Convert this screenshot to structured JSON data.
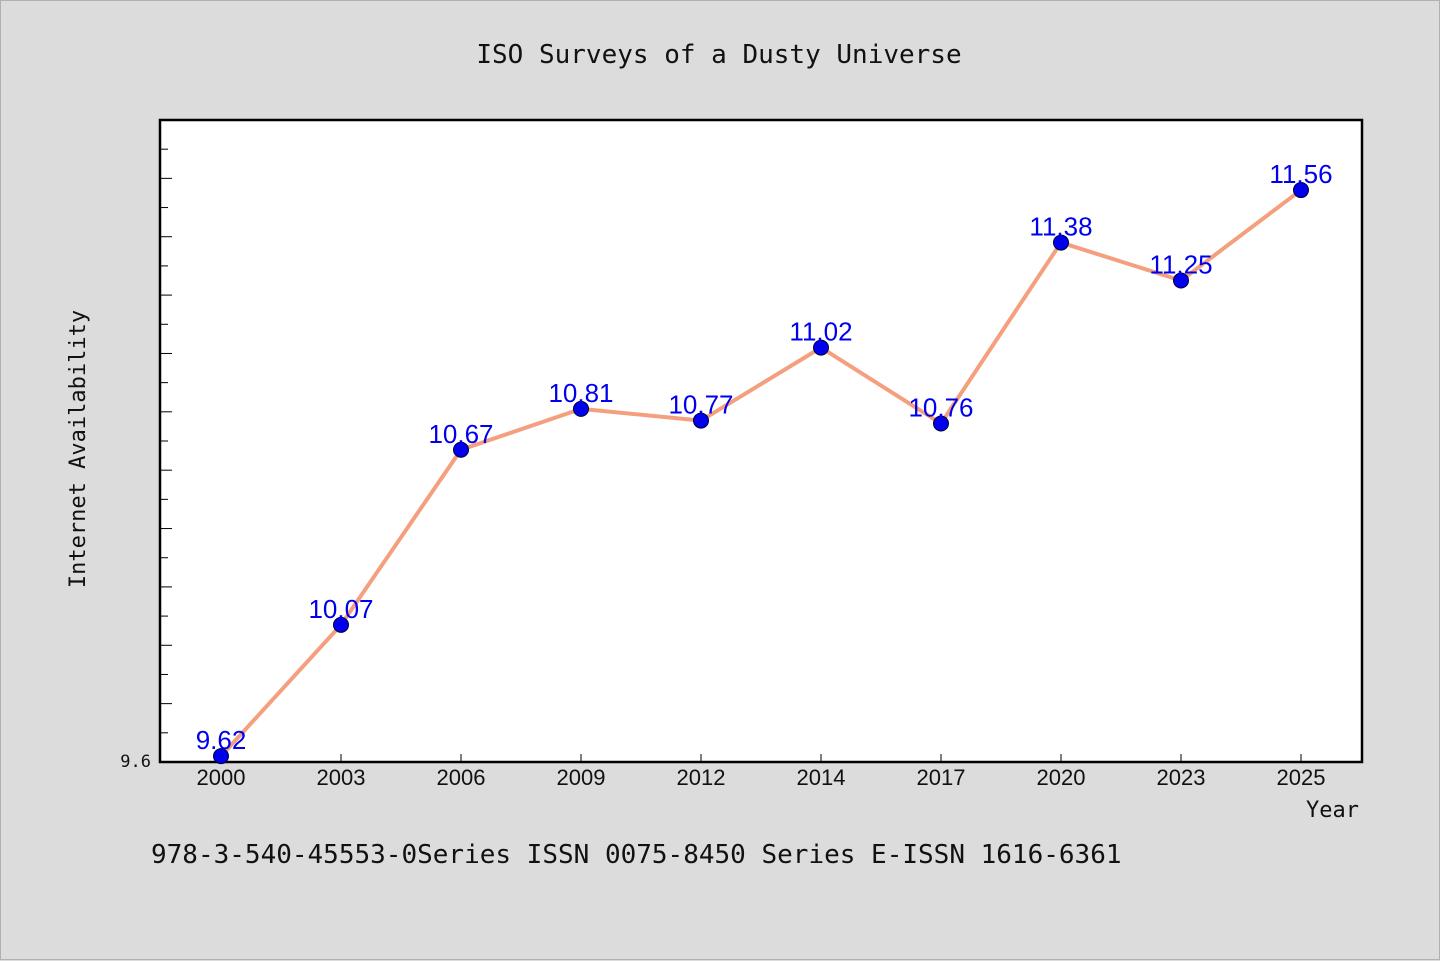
{
  "footer_text": "978-3-540-45553-0Series ISSN 0075-8450 Series E-ISSN 1616-6361",
  "chart_data": {
    "type": "line",
    "title": "ISO Surveys of a Dusty Universe",
    "xlabel": "Year",
    "ylabel": "Internet Availability",
    "categories": [
      "2000",
      "2003",
      "2006",
      "2009",
      "2012",
      "2014",
      "2017",
      "2020",
      "2023",
      "2025"
    ],
    "series": [
      {
        "values": [
          9.62,
          10.07,
          10.67,
          10.81,
          10.77,
          11.02,
          10.76,
          11.38,
          11.25,
          11.56
        ]
      }
    ],
    "data_labels": [
      "9.62",
      "10.07",
      "10.67",
      "10.81",
      "10.77",
      "11.02",
      "10.76",
      "11.38",
      "11.25",
      "11.56"
    ],
    "ylim": [
      9.6,
      11.8
    ],
    "yticks_labeled": [
      "9.6"
    ],
    "grid": false,
    "legend": "none",
    "colors": {
      "line": "#f4a07e",
      "marker": "#0000ee",
      "data_label": "#0000ee",
      "background": "#dcdcdc",
      "plot_background": "#ffffff"
    }
  }
}
